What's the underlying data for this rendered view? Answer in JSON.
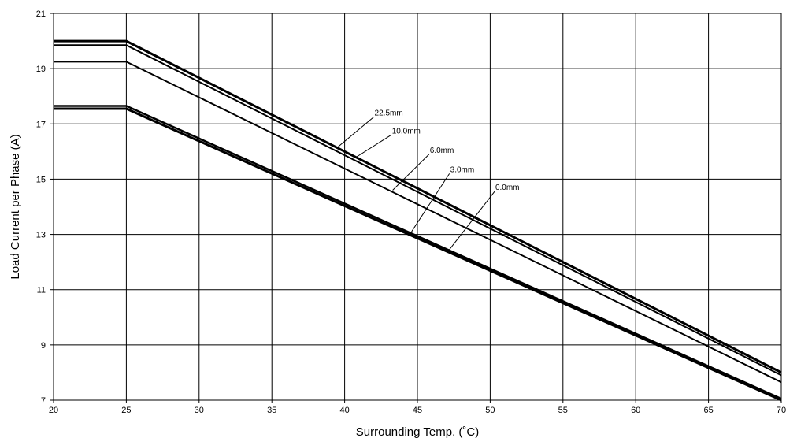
{
  "chart_data": {
    "type": "line",
    "title": "",
    "xlabel": "Surrounding Temp. (˚C)",
    "ylabel": "Load Current per Phase (A)",
    "xlim": [
      20,
      70
    ],
    "ylim": [
      7,
      21
    ],
    "x_ticks": [
      "20",
      "25",
      "30",
      "35",
      "40",
      "45",
      "50",
      "55",
      "60",
      "65",
      "70"
    ],
    "y_ticks": [
      "7",
      "9",
      "11",
      "13",
      "15",
      "17",
      "19",
      "21"
    ],
    "grid": true,
    "legend": "none",
    "series": [
      {
        "name": "22.5mm",
        "x": [
          20,
          25,
          70
        ],
        "y": [
          20.0,
          20.0,
          8.0
        ]
      },
      {
        "name": "10.0mm",
        "x": [
          20,
          25,
          70
        ],
        "y": [
          19.85,
          19.85,
          7.9
        ]
      },
      {
        "name": "6.0mm",
        "x": [
          20,
          25,
          70
        ],
        "y": [
          19.25,
          19.25,
          7.65
        ]
      },
      {
        "name": "3.0mm",
        "x": [
          20,
          25,
          70
        ],
        "y": [
          17.65,
          17.65,
          7.05
        ]
      },
      {
        "name": "0.0mm",
        "x": [
          20,
          25,
          70
        ],
        "y": [
          17.55,
          17.55,
          7.0
        ]
      }
    ],
    "annotations": [
      {
        "text": "22.5mm",
        "series": "22.5mm",
        "x": 39.5,
        "y": 16.15,
        "label_x": 42,
        "label_y": 17.25
      },
      {
        "text": "10.0mm",
        "series": "10.0mm",
        "x": 40.8,
        "y": 15.8,
        "label_x": 43.2,
        "label_y": 16.6
      },
      {
        "text": "6.0mm",
        "series": "6.0mm",
        "x": 43.3,
        "y": 14.6,
        "label_x": 45.8,
        "label_y": 15.9
      },
      {
        "text": "3.0mm",
        "series": "3.0mm",
        "x": 44.6,
        "y": 13.1,
        "label_x": 47.2,
        "label_y": 15.2
      },
      {
        "text": "0.0mm",
        "series": "0.0mm",
        "x": 47.2,
        "y": 12.45,
        "label_x": 50.3,
        "label_y": 14.55
      }
    ]
  }
}
